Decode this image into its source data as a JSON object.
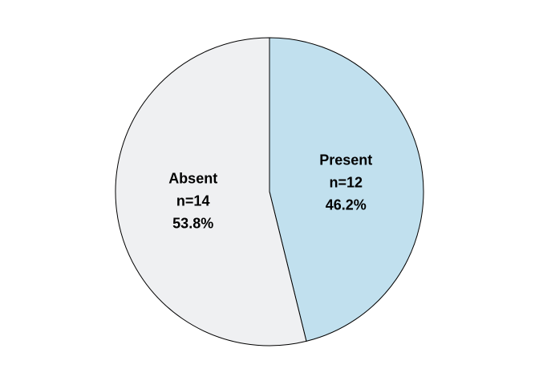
{
  "chart_data": {
    "type": "pie",
    "title": "",
    "slices": [
      {
        "label": "Present",
        "count_label": "n=12",
        "percent_label": "46.2%",
        "value": 12,
        "color": "#c1e0ee"
      },
      {
        "label": "Absent",
        "count_label": "n=14",
        "percent_label": "53.8%",
        "value": 14,
        "color": "#eff0f2"
      }
    ],
    "start_angle": "12 o'clock",
    "direction": "clockwise",
    "outline_color": "#000000",
    "legend": "none"
  }
}
